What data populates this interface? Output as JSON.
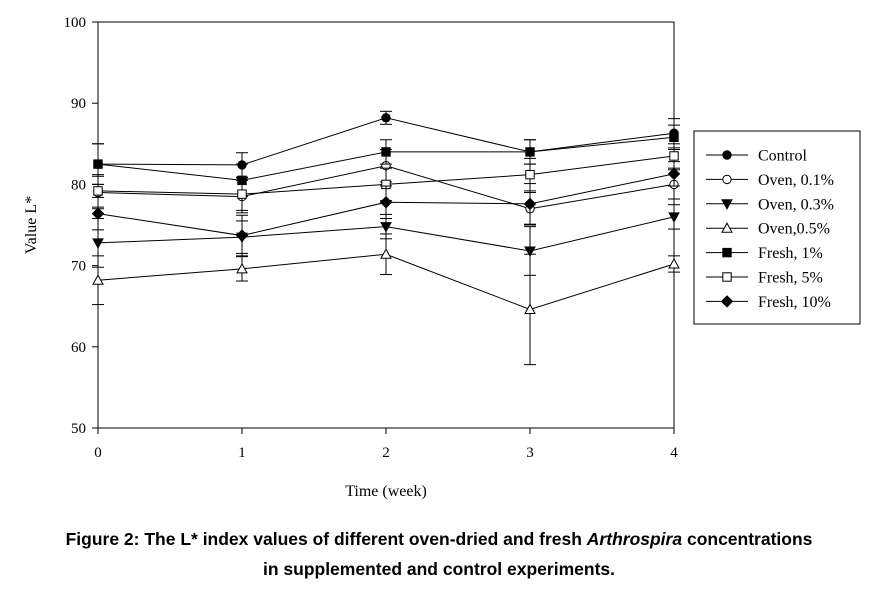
{
  "chart_data": {
    "type": "line",
    "xlabel": "Time (week)",
    "ylabel": "Value L*",
    "x": [
      0,
      1,
      2,
      3,
      4
    ],
    "xlim": [
      0,
      4
    ],
    "ylim": [
      50,
      100
    ],
    "xticks": [
      "0",
      "1",
      "2",
      "3",
      "4"
    ],
    "yticks": [
      "50",
      "60",
      "70",
      "80",
      "90",
      "100"
    ],
    "grid": false,
    "legend": "right",
    "error_bars": true,
    "series": [
      {
        "name": "Control",
        "marker": "circle-filled",
        "values": [
          82.5,
          82.4,
          88.2,
          84.0,
          86.3
        ],
        "err": [
          2.5,
          1.5,
          0.8,
          1.5,
          1.8
        ]
      },
      {
        "name": "Oven, 0.1%",
        "marker": "circle-open",
        "values": [
          79.0,
          78.5,
          82.3,
          77.0,
          80.0
        ],
        "err": [
          2.0,
          2.0,
          2.0,
          2.0,
          1.8
        ]
      },
      {
        "name": "Oven, 0.3%",
        "marker": "triangle-down-filled",
        "values": [
          72.8,
          73.5,
          74.8,
          71.8,
          76.0
        ],
        "err": [
          3.0,
          2.0,
          1.5,
          3.0,
          1.5
        ]
      },
      {
        "name": "Oven,0.5%",
        "marker": "triangle-open",
        "values": [
          68.2,
          69.6,
          71.4,
          64.6,
          70.2
        ],
        "err": [
          3.0,
          1.5,
          2.5,
          6.8,
          1.0
        ]
      },
      {
        "name": "Fresh, 1%",
        "marker": "square-filled",
        "values": [
          82.5,
          80.5,
          84.0,
          84.0,
          85.8
        ],
        "err": [
          2.5,
          2.0,
          1.5,
          1.5,
          1.5
        ]
      },
      {
        "name": "Fresh, 5%",
        "marker": "square-open",
        "values": [
          79.2,
          78.8,
          80.0,
          81.2,
          83.5
        ],
        "err": [
          2.0,
          2.0,
          2.0,
          2.0,
          1.5
        ]
      },
      {
        "name": "Fresh, 10%",
        "marker": "diamond-filled",
        "values": [
          76.4,
          73.7,
          77.8,
          77.6,
          81.3
        ],
        "err": [
          2.0,
          2.5,
          2.0,
          2.5,
          1.5
        ]
      }
    ]
  },
  "caption": {
    "prefix": "Figure 2: The L* index values of different oven-dried and fresh ",
    "italic": "Arthrospira",
    "suffix": " concentrations",
    "line2": "in supplemented and control experiments."
  }
}
